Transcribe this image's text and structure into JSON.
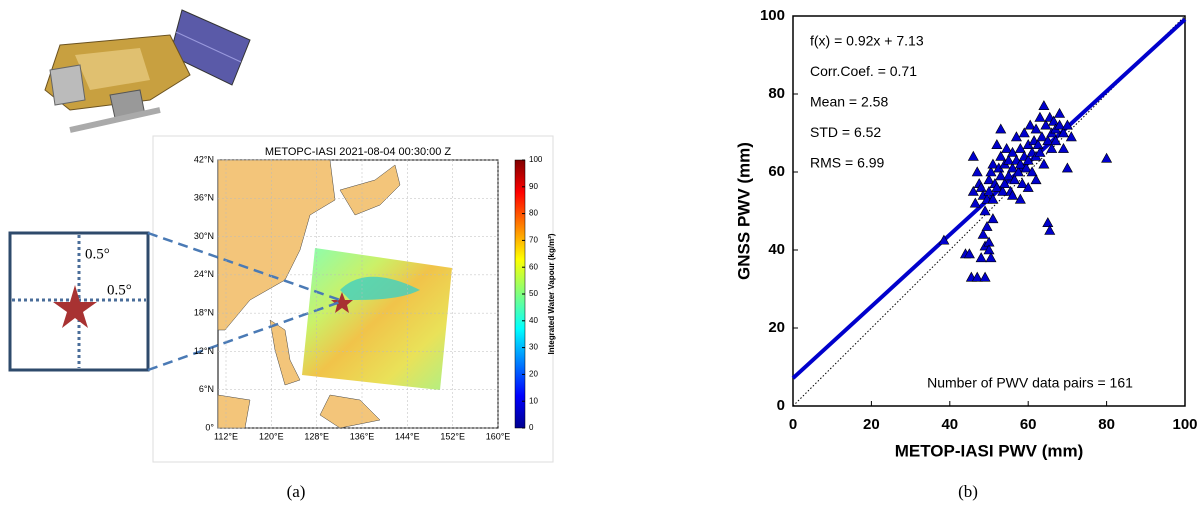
{
  "panel_a": {
    "caption": "(a)",
    "title": "METOPC-IASI 2021-08-04 00:30:00 Z",
    "lat_ticks": [
      "0°",
      "6°N",
      "12°N",
      "18°N",
      "24°N",
      "30°N",
      "36°N",
      "42°N"
    ],
    "lon_ticks": [
      "112°E",
      "120°E",
      "128°E",
      "136°E",
      "144°E",
      "152°E",
      "160°E"
    ],
    "colorbar": {
      "label": "Integrated Water Vapour (kg/m²)",
      "lim": [
        0,
        100
      ],
      "ticks": [
        0,
        10,
        20,
        30,
        40,
        50,
        60,
        70,
        80,
        90,
        100
      ]
    },
    "inset": {
      "labels": [
        "0.5°",
        "0.5°"
      ]
    }
  },
  "chart_data": {
    "type": "scatter",
    "caption": "(b)",
    "xlabel": "METOP-IASI PWV (mm)",
    "ylabel": "GNSS PWV (mm)",
    "xlim": [
      0,
      100
    ],
    "ylim": [
      0,
      100
    ],
    "xticks": [
      0,
      20,
      40,
      60,
      80,
      100
    ],
    "yticks": [
      0,
      20,
      40,
      60,
      80,
      100
    ],
    "annotations": [
      "f(x) = 0.92x + 7.13",
      "Corr.Coef. = 0.71",
      "Mean = 2.58",
      "STD = 6.52",
      "RMS = 6.99"
    ],
    "note": "Number of PWV data pairs = 161",
    "series": [
      {
        "type": "scatter",
        "color": "#0000cc",
        "x": [
          38.5,
          44,
          45,
          45.5,
          47,
          49,
          48,
          48.5,
          49,
          50,
          50,
          50.5,
          46,
          46.5,
          46,
          47,
          47.5,
          48,
          48.5,
          49,
          49.5,
          50,
          50,
          50.5,
          51,
          51,
          51.5,
          52,
          52,
          52.5,
          53,
          53,
          53.5,
          54,
          54,
          54.5,
          55,
          55,
          55.5,
          56,
          56,
          56.5,
          57,
          57,
          57.5,
          58,
          58,
          58.5,
          59,
          59,
          59.5,
          60,
          60,
          60.5,
          61,
          61,
          61.5,
          62,
          62,
          62.5,
          63,
          63,
          63.5,
          64,
          64,
          64.5,
          65,
          65,
          65.5,
          65.5,
          66,
          66,
          66.5,
          67,
          67,
          68,
          68,
          69,
          69,
          70,
          70,
          71,
          80,
          53,
          56,
          58,
          60,
          62,
          51,
          49.5
        ],
        "values": [
          42.5,
          39,
          39,
          33,
          33,
          33,
          38,
          44,
          41,
          42,
          40,
          38,
          55,
          52,
          64,
          60,
          57,
          56,
          54,
          50,
          53,
          58,
          55,
          60,
          53,
          62,
          57,
          67,
          56,
          61,
          59,
          64,
          55,
          62,
          57,
          66,
          59,
          63,
          55,
          61,
          65,
          58,
          63,
          69,
          60,
          66,
          62,
          57,
          64,
          70,
          61,
          67,
          63,
          72,
          65,
          60,
          68,
          64,
          71,
          67,
          74,
          65,
          69,
          77,
          62,
          72,
          68,
          47,
          45,
          74,
          70,
          66,
          73,
          71,
          68,
          75,
          72,
          70,
          66,
          72,
          61,
          69,
          63.5,
          71,
          54,
          53,
          56,
          58,
          48,
          46
        ]
      },
      {
        "type": "line",
        "color": "#0000cc",
        "width": 4,
        "x": [
          0,
          100
        ],
        "values": [
          7.13,
          99.13
        ]
      },
      {
        "type": "line",
        "color": "#000000",
        "width": 1,
        "dash": "dotted",
        "x": [
          0,
          100
        ],
        "values": [
          0,
          100
        ]
      }
    ]
  }
}
